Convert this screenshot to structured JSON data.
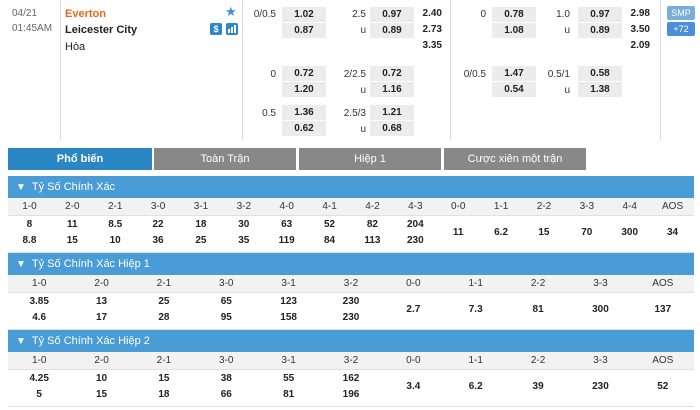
{
  "match": {
    "date": "04/21",
    "time": "01:45AM",
    "home": "Everton",
    "away": "Leicester City",
    "draw": "Hòa"
  },
  "icons": {
    "star": "star-icon",
    "dollar": "dollar-icon",
    "chart": "bar-chart-icon"
  },
  "badges": {
    "smp": "SMP",
    "more": "+72"
  },
  "ft": {
    "hcap": [
      {
        "line": "0/0.5",
        "home": "1.02",
        "away": "0.87"
      },
      {
        "line": "0",
        "home": "0.72",
        "away": "1.20"
      },
      {
        "line": "0.5",
        "home": "1.36",
        "away": "0.62"
      }
    ],
    "ou": [
      {
        "line": "2.5",
        "over": "0.97",
        "under_label": "u",
        "under": "0.89"
      },
      {
        "line": "2/2.5",
        "over": "0.72",
        "under_label": "u",
        "under": "1.16"
      },
      {
        "line": "2.5/3",
        "over": "1.21",
        "under_label": "u",
        "under": "0.68"
      }
    ],
    "x12": [
      "2.40",
      "2.73",
      "3.35"
    ]
  },
  "ht": {
    "hcap": [
      {
        "line": "0",
        "home": "0.78",
        "away": "1.08"
      },
      {
        "line": "0/0.5",
        "home": "1.47",
        "away": "0.54"
      }
    ],
    "ou": [
      {
        "line": "1.0",
        "over": "0.97",
        "under_label": "u",
        "under": "0.89"
      },
      {
        "line": "0.5/1",
        "over": "0.58",
        "under_label": "u",
        "under": "1.38"
      }
    ],
    "x12": [
      "2.98",
      "3.50",
      "2.09"
    ]
  },
  "tabs": [
    "Phổ biến",
    "Toàn Trận",
    "Hiệp 1",
    "Cược xiên một trận"
  ],
  "sections": [
    {
      "title": "Tỷ Số Chính Xác",
      "headers": [
        "1-0",
        "2-0",
        "2-1",
        "3-0",
        "3-1",
        "3-2",
        "4-0",
        "4-1",
        "4-2",
        "4-3",
        "0-0",
        "1-1",
        "2-2",
        "3-3",
        "4-4",
        "AOS"
      ],
      "top": [
        "8",
        "11",
        "8.5",
        "22",
        "18",
        "30",
        "63",
        "52",
        "82",
        "204",
        "",
        "",
        "",
        "",
        "",
        ""
      ],
      "bottom": [
        "8.8",
        "15",
        "10",
        "36",
        "25",
        "35",
        "119",
        "84",
        "113",
        "230",
        "",
        "",
        "",
        "",
        "",
        ""
      ],
      "mid": [
        "",
        "",
        "",
        "",
        "",
        "",
        "",
        "",
        "",
        "",
        "11",
        "6.2",
        "15",
        "70",
        "300",
        "34"
      ]
    },
    {
      "title": "Tỷ Số Chính Xác Hiệp 1",
      "headers": [
        "1-0",
        "2-0",
        "2-1",
        "3-0",
        "3-1",
        "3-2",
        "0-0",
        "1-1",
        "2-2",
        "3-3",
        "AOS"
      ],
      "top": [
        "3.85",
        "13",
        "25",
        "65",
        "123",
        "230",
        "",
        "",
        "",
        "",
        ""
      ],
      "bottom": [
        "4.6",
        "17",
        "28",
        "95",
        "158",
        "230",
        "",
        "",
        "",
        "",
        ""
      ],
      "mid": [
        "",
        "",
        "",
        "",
        "",
        "",
        "2.7",
        "7.3",
        "81",
        "300",
        "137"
      ]
    },
    {
      "title": "Tỷ Số Chính Xác Hiệp 2",
      "headers": [
        "1-0",
        "2-0",
        "2-1",
        "3-0",
        "3-1",
        "3-2",
        "0-0",
        "1-1",
        "2-2",
        "3-3",
        "AOS"
      ],
      "top": [
        "4.25",
        "10",
        "15",
        "38",
        "55",
        "162",
        "",
        "",
        "",
        "",
        ""
      ],
      "bottom": [
        "5",
        "15",
        "18",
        "66",
        "81",
        "196",
        "",
        "",
        "",
        "",
        ""
      ],
      "mid": [
        "",
        "",
        "",
        "",
        "",
        "",
        "3.4",
        "6.2",
        "39",
        "230",
        "52"
      ]
    }
  ]
}
